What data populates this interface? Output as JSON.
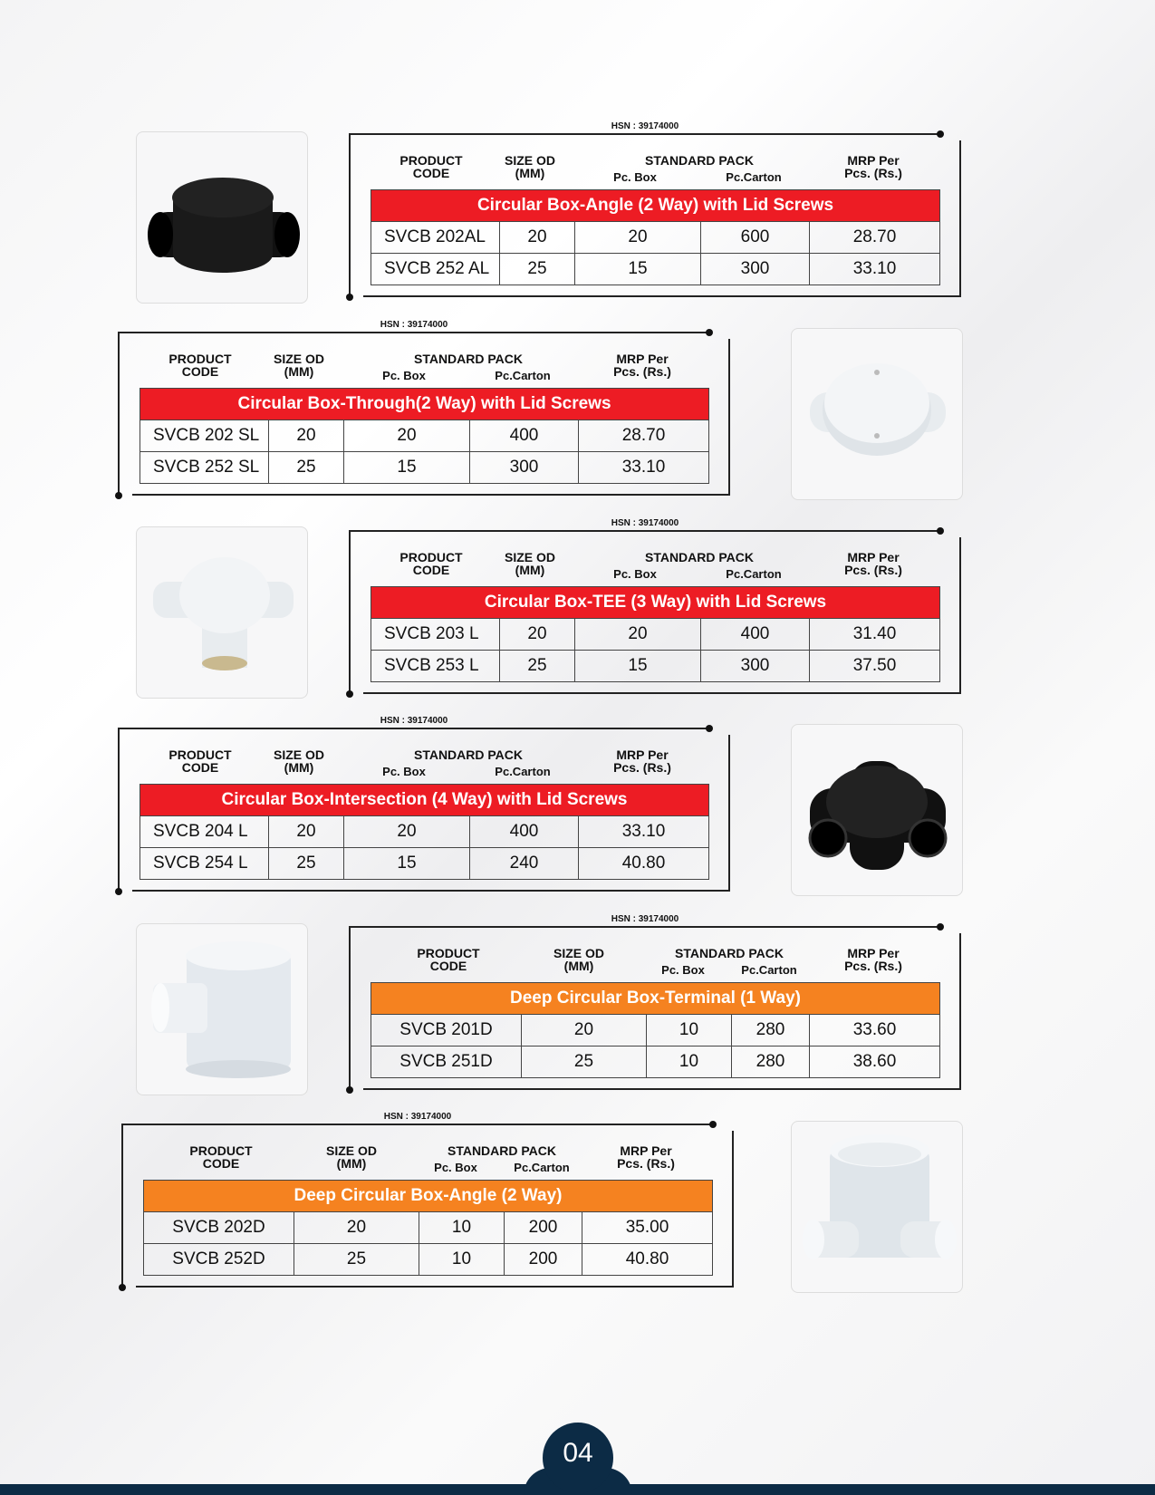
{
  "headers": {
    "product_code": [
      "PRODUCT",
      "CODE"
    ],
    "size_od": [
      "SIZE OD",
      "(MM)"
    ],
    "standard_pack": "STANDARD PACK",
    "pc_box": "Pc. Box",
    "pc_carton": "Pc.Carton",
    "mrp": [
      "MRP Per",
      "Pcs. (Rs.)"
    ]
  },
  "colors": {
    "red": "#ed1c24",
    "orange": "#f58220",
    "navy": "#0c2b45"
  },
  "sections": [
    {
      "hsn": "HSN : 39174000",
      "title": "Circular Box-Angle (2 Way) with Lid Screws",
      "color": "red",
      "product_image": "black-circular-box-angle",
      "rows": [
        [
          "SVCB 202AL",
          "20",
          "20",
          "600",
          "28.70"
        ],
        [
          "SVCB 252 AL",
          "25",
          "15",
          "300",
          "33.10"
        ]
      ]
    },
    {
      "hsn": "HSN : 39174000",
      "title": "Circular Box-Through(2 Way) with Lid Screws",
      "color": "red",
      "product_image": "white-circular-box-through",
      "rows": [
        [
          "SVCB 202 SL",
          "20",
          "20",
          "400",
          "28.70"
        ],
        [
          "SVCB 252 SL",
          "25",
          "15",
          "300",
          "33.10"
        ]
      ]
    },
    {
      "hsn": "HSN : 39174000",
      "title": "Circular Box-TEE (3 Way) with Lid Screws",
      "color": "red",
      "product_image": "white-circular-box-tee",
      "rows": [
        [
          "SVCB 203 L",
          "20",
          "20",
          "400",
          "31.40"
        ],
        [
          "SVCB 253 L",
          "25",
          "15",
          "300",
          "37.50"
        ]
      ]
    },
    {
      "hsn": "HSN : 39174000",
      "title": "Circular Box-Intersection (4 Way) with Lid Screws",
      "color": "red",
      "product_image": "black-circular-box-intersection",
      "rows": [
        [
          "SVCB 204 L",
          "20",
          "20",
          "400",
          "33.10"
        ],
        [
          "SVCB 254 L",
          "25",
          "15",
          "240",
          "40.80"
        ]
      ]
    },
    {
      "hsn": "HSN : 39174000",
      "title": "Deep Circular Box-Terminal (1 Way)",
      "color": "orange",
      "product_image": "white-deep-box-terminal",
      "rows": [
        [
          "SVCB 201D",
          "20",
          "10",
          "280",
          "33.60"
        ],
        [
          "SVCB 251D",
          "25",
          "10",
          "280",
          "38.60"
        ]
      ]
    },
    {
      "hsn": "HSN : 39174000",
      "title": "Deep Circular Box-Angle (2 Way)",
      "color": "orange",
      "product_image": "white-deep-box-angle",
      "rows": [
        [
          "SVCB 202D",
          "20",
          "10",
          "200",
          "35.00"
        ],
        [
          "SVCB 252D",
          "25",
          "10",
          "200",
          "40.80"
        ]
      ]
    }
  ],
  "page_number": "04"
}
